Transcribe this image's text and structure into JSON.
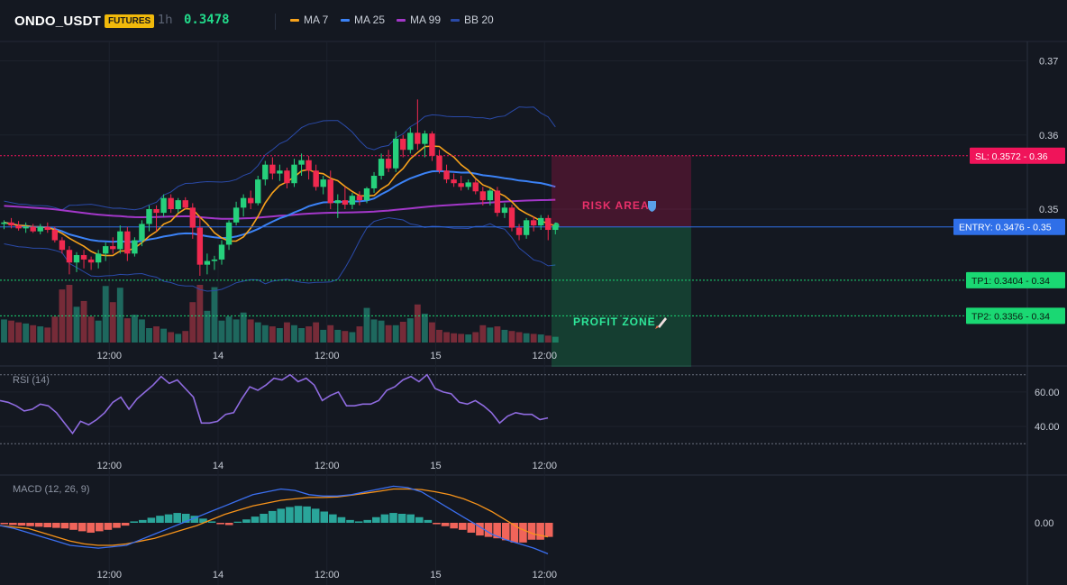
{
  "header": {
    "symbol": "ONDO_USDT",
    "badge": "FUTURES",
    "interval": "1h",
    "last_price": "0.3478",
    "legend": [
      {
        "label": "MA 7",
        "color": "#f7a21b"
      },
      {
        "label": "MA 25",
        "color": "#3b82f6"
      },
      {
        "label": "MA 99",
        "color": "#a337c9"
      },
      {
        "label": "BB 20",
        "color": "#2a4aa8"
      }
    ]
  },
  "colors": {
    "up": "#26d07c",
    "down": "#f0294f",
    "vol_up": "#1f6d62",
    "vol_down": "#7b2c3a",
    "sl": "#f0145a",
    "entry": "#2f6fe8",
    "tp": "#1ad873"
  },
  "chart_data": [
    {
      "type": "candlestick",
      "name": "price",
      "y_ticks": [
        "0.37",
        "0.36",
        "0.35"
      ],
      "ylim": [
        0.332,
        0.3725
      ],
      "x_ticks": [
        {
          "label": "12:00",
          "index": 14.5
        },
        {
          "label": "14",
          "index": 29.5
        },
        {
          "label": "12:00",
          "index": 44.5
        },
        {
          "label": "15",
          "index": 59.5
        },
        {
          "label": "12:00",
          "index": 74.5
        }
      ],
      "candles": [
        [
          0.348,
          0.3485,
          0.3473,
          0.3482
        ],
        [
          0.3482,
          0.3488,
          0.3474,
          0.3478
        ],
        [
          0.3478,
          0.3484,
          0.3471,
          0.3474
        ],
        [
          0.3474,
          0.3482,
          0.3468,
          0.3476
        ],
        [
          0.3476,
          0.348,
          0.3468,
          0.347
        ],
        [
          0.347,
          0.348,
          0.3466,
          0.3476
        ],
        [
          0.3476,
          0.3482,
          0.3468,
          0.3472
        ],
        [
          0.3472,
          0.3476,
          0.3455,
          0.3458
        ],
        [
          0.3458,
          0.3462,
          0.344,
          0.3445
        ],
        [
          0.3445,
          0.345,
          0.3412,
          0.3428
        ],
        [
          0.3428,
          0.3442,
          0.3415,
          0.3438
        ],
        [
          0.3438,
          0.3445,
          0.342,
          0.3432
        ],
        [
          0.3432,
          0.3436,
          0.3418,
          0.3428
        ],
        [
          0.3428,
          0.3445,
          0.342,
          0.344
        ],
        [
          0.344,
          0.3455,
          0.343,
          0.345
        ],
        [
          0.345,
          0.3462,
          0.344,
          0.3446
        ],
        [
          0.3446,
          0.3478,
          0.344,
          0.347
        ],
        [
          0.347,
          0.3476,
          0.343,
          0.344
        ],
        [
          0.344,
          0.3462,
          0.3436,
          0.3458
        ],
        [
          0.3458,
          0.3485,
          0.345,
          0.348
        ],
        [
          0.348,
          0.3505,
          0.347,
          0.35
        ],
        [
          0.35,
          0.3505,
          0.347,
          0.3495
        ],
        [
          0.3495,
          0.352,
          0.349,
          0.3515
        ],
        [
          0.3515,
          0.352,
          0.3495,
          0.35
        ],
        [
          0.35,
          0.3515,
          0.3495,
          0.3512
        ],
        [
          0.3512,
          0.3516,
          0.35,
          0.3502
        ],
        [
          0.3502,
          0.3508,
          0.346,
          0.3475
        ],
        [
          0.3475,
          0.349,
          0.341,
          0.3425
        ],
        [
          0.3425,
          0.344,
          0.3412,
          0.343
        ],
        [
          0.343,
          0.3437,
          0.3418,
          0.3432
        ],
        [
          0.3432,
          0.3458,
          0.3425,
          0.3452
        ],
        [
          0.3452,
          0.3485,
          0.3445,
          0.3482
        ],
        [
          0.3482,
          0.351,
          0.3478,
          0.3502
        ],
        [
          0.3502,
          0.352,
          0.349,
          0.3515
        ],
        [
          0.3515,
          0.3525,
          0.35,
          0.3508
        ],
        [
          0.3508,
          0.3545,
          0.3505,
          0.354
        ],
        [
          0.354,
          0.3565,
          0.3532,
          0.356
        ],
        [
          0.356,
          0.357,
          0.354,
          0.3548
        ],
        [
          0.3548,
          0.356,
          0.3538,
          0.3552
        ],
        [
          0.3552,
          0.3556,
          0.3528,
          0.3535
        ],
        [
          0.3535,
          0.3568,
          0.353,
          0.356
        ],
        [
          0.356,
          0.3575,
          0.3545,
          0.3566
        ],
        [
          0.3566,
          0.3572,
          0.354,
          0.3552
        ],
        [
          0.3552,
          0.356,
          0.3525,
          0.353
        ],
        [
          0.353,
          0.3545,
          0.352,
          0.354
        ],
        [
          0.354,
          0.3552,
          0.35,
          0.3508
        ],
        [
          0.3508,
          0.352,
          0.3488,
          0.3512
        ],
        [
          0.3512,
          0.353,
          0.35,
          0.3506
        ],
        [
          0.3506,
          0.3522,
          0.35,
          0.3518
        ],
        [
          0.3518,
          0.3524,
          0.3505,
          0.3512
        ],
        [
          0.3512,
          0.353,
          0.3508,
          0.3528
        ],
        [
          0.3528,
          0.355,
          0.3522,
          0.3545
        ],
        [
          0.3545,
          0.3575,
          0.354,
          0.3568
        ],
        [
          0.3568,
          0.358,
          0.355,
          0.3555
        ],
        [
          0.3555,
          0.3605,
          0.355,
          0.3595
        ],
        [
          0.3595,
          0.36,
          0.357,
          0.358
        ],
        [
          0.358,
          0.361,
          0.3575,
          0.3603
        ],
        [
          0.3603,
          0.3648,
          0.358,
          0.3588
        ],
        [
          0.3588,
          0.3606,
          0.357,
          0.3602
        ],
        [
          0.3602,
          0.3605,
          0.3565,
          0.3572
        ],
        [
          0.3572,
          0.358,
          0.3548,
          0.3552
        ],
        [
          0.3552,
          0.356,
          0.3535,
          0.354
        ],
        [
          0.354,
          0.3548,
          0.353,
          0.3535
        ],
        [
          0.3535,
          0.3545,
          0.3525,
          0.353
        ],
        [
          0.353,
          0.354,
          0.3526,
          0.3536
        ],
        [
          0.3536,
          0.354,
          0.352,
          0.3524
        ],
        [
          0.3524,
          0.353,
          0.3505,
          0.3512
        ],
        [
          0.3512,
          0.3528,
          0.3505,
          0.3525
        ],
        [
          0.3525,
          0.353,
          0.349,
          0.3495
        ],
        [
          0.3495,
          0.3508,
          0.3488,
          0.3502
        ],
        [
          0.3502,
          0.3506,
          0.347,
          0.3475
        ],
        [
          0.3475,
          0.348,
          0.3458,
          0.3465
        ],
        [
          0.3465,
          0.3488,
          0.346,
          0.3485
        ],
        [
          0.3485,
          0.349,
          0.347,
          0.3478
        ],
        [
          0.3478,
          0.3492,
          0.3472,
          0.3488
        ],
        [
          0.3488,
          0.3492,
          0.3458,
          0.3472
        ],
        [
          0.3472,
          0.3482,
          0.3466,
          0.3478
        ]
      ],
      "volumes": [
        0.4,
        0.38,
        0.35,
        0.33,
        0.3,
        0.28,
        0.26,
        0.45,
        0.92,
        1.0,
        0.62,
        0.72,
        0.45,
        0.38,
        0.98,
        0.7,
        0.95,
        0.42,
        0.48,
        0.4,
        0.25,
        0.28,
        0.24,
        0.18,
        0.15,
        0.2,
        0.7,
        1.0,
        0.55,
        0.96,
        0.38,
        0.45,
        0.4,
        0.52,
        0.4,
        0.35,
        0.3,
        0.28,
        0.25,
        0.35,
        0.3,
        0.25,
        0.28,
        0.35,
        0.22,
        0.3,
        0.22,
        0.2,
        0.18,
        0.28,
        0.6,
        0.4,
        0.38,
        0.3,
        0.3,
        0.36,
        0.42,
        0.66,
        0.5,
        0.35,
        0.22,
        0.18,
        0.16,
        0.15,
        0.14,
        0.18,
        0.3,
        0.26,
        0.28,
        0.22,
        0.2,
        0.18,
        0.16,
        0.15,
        0.14,
        0.12,
        0.1
      ],
      "levels": [
        {
          "label": "SL: 0.3572",
          "axis_label": "0.36",
          "value": 0.3572,
          "kind": "sl"
        },
        {
          "label": "ENTRY: 0.3476",
          "axis_label": "0.35",
          "value": 0.3476,
          "kind": "entry"
        },
        {
          "label": "TP1: 0.3404",
          "axis_label": "0.34",
          "value": 0.3404,
          "kind": "tp"
        },
        {
          "label": "TP2: 0.3356",
          "axis_label": "0.34",
          "value": 0.3356,
          "kind": "tp"
        }
      ],
      "zones": [
        {
          "label": "RISK AREA",
          "icon": "shield-icon",
          "from": 0.3476,
          "to": 0.3572,
          "color": "#f0145a"
        },
        {
          "label": "PROFIT ZONE",
          "icon": "rocket-icon",
          "from": 0.3356,
          "to": 0.3476,
          "color": "#1ad873"
        }
      ],
      "last_axis_label": "12:00"
    },
    {
      "type": "line",
      "name": "RSI (14)",
      "y_ticks": [
        "60.00",
        "40.00"
      ],
      "levels": [
        70,
        30
      ],
      "ylim": [
        27,
        73
      ],
      "values": [
        55,
        54,
        52,
        49,
        50,
        53,
        52,
        48,
        42,
        36,
        43,
        41,
        44,
        48,
        54,
        57,
        50,
        56,
        60,
        64,
        69,
        65,
        67,
        62,
        57,
        42,
        42,
        43,
        47,
        48,
        56,
        63,
        61,
        64,
        68,
        67,
        70,
        66,
        68,
        64,
        55,
        58,
        60,
        52,
        52,
        53,
        53,
        55,
        61,
        63,
        67,
        69,
        66,
        70,
        62,
        60,
        59,
        54,
        53,
        55,
        52,
        48,
        42,
        46,
        48,
        47,
        47,
        44,
        45
      ]
    },
    {
      "type": "bar",
      "name": "MACD (12, 26, 9)",
      "y_ticks": [
        "0.00"
      ],
      "ylim": [
        -0.0016,
        0.0016
      ],
      "histogram": [
        -5e-05,
        -8e-05,
        -0.0001,
        -0.00012,
        -0.00014,
        -0.00016,
        -0.00018,
        -0.0002,
        -0.00025,
        -0.0003,
        -0.00035,
        -0.0003,
        -0.00025,
        -0.00018,
        -0.0001,
        5e-05,
        0.0001,
        0.00018,
        0.00025,
        0.0003,
        0.00035,
        0.00032,
        0.00025,
        0.00015,
        5e-05,
        -5e-05,
        -8e-05,
        4e-05,
        0.00012,
        0.00022,
        0.00032,
        0.00042,
        0.0005,
        0.00056,
        0.0006,
        0.00058,
        0.0005,
        0.0004,
        0.0003,
        0.0002,
        0.0001,
        5e-05,
        0.0001,
        0.0002,
        0.0003,
        0.00035,
        0.00032,
        0.0003,
        0.0002,
        0.0001,
        -5e-05,
        -0.00012,
        -0.0002,
        -0.00025,
        -0.00035,
        -0.00045,
        -0.0005,
        -0.00055,
        -0.00062,
        -0.0007,
        -0.0007,
        -0.0006,
        -0.0006,
        -0.0005
      ],
      "macd": [
        -0.0001,
        -0.0002,
        -0.00035,
        -0.0005,
        -0.00065,
        -0.0008,
        -0.00085,
        -0.0009,
        -0.00085,
        -0.0008,
        -0.0006,
        -0.0004,
        -0.0002,
        0,
        0.0002,
        0.0004,
        0.0006,
        0.0008,
        0.001,
        0.0011,
        0.0012,
        0.00115,
        0.001,
        0.00095,
        0.00095,
        0.001,
        0.0011,
        0.0012,
        0.0013,
        0.00125,
        0.0011,
        0.0008,
        0.0005,
        0.0002,
        -0.0001,
        -0.0004,
        -0.0006,
        -0.00075,
        -0.0009,
        -0.0011
      ],
      "signal": [
        -0.0001,
        -0.00015,
        -0.0002,
        -0.00035,
        -0.0005,
        -0.00065,
        -0.00075,
        -0.0008,
        -0.0008,
        -0.00075,
        -0.00065,
        -0.00055,
        -0.0004,
        -0.00025,
        -0.0001,
        0.0001,
        0.0003,
        0.00045,
        0.0006,
        0.0007,
        0.0008,
        0.00085,
        0.0009,
        0.0009,
        0.00092,
        0.00098,
        0.00105,
        0.00112,
        0.0012,
        0.0012,
        0.00118,
        0.0011,
        0.001,
        0.00085,
        0.00065,
        0.0004,
        0.0001,
        -0.0002,
        -0.0004,
        -0.0005
      ]
    }
  ]
}
